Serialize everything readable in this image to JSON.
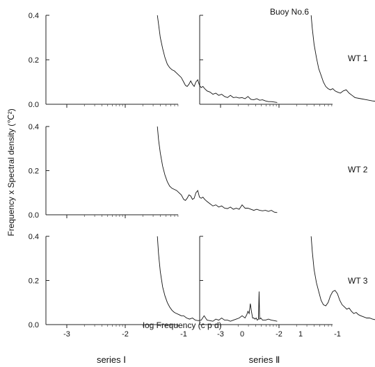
{
  "figure": {
    "buoy_label": "Buoy No.6",
    "ylabel": "Frequency x Spectral density (℃²)",
    "xlabel": "log Frequency (c p d)",
    "column_labels": [
      "series Ⅰ",
      "series Ⅱ"
    ],
    "row_labels": [
      "WT 1",
      "WT 2",
      "WT 3"
    ],
    "y_tick_labels": [
      "0.0",
      "0.2",
      "0.4"
    ],
    "x_tick_labels": [
      "-3",
      "-2",
      "-1",
      "0",
      "1"
    ]
  },
  "chart_data": [
    {
      "type": "line",
      "panel": "WT 1 series Ⅰ",
      "x_range": [
        -3,
        1
      ],
      "ylim": [
        0,
        0.4
      ],
      "series": [
        {
          "x": [
            -1.45,
            -1.43,
            -1.4,
            -1.36,
            -1.32,
            -1.28,
            -1.24,
            -1.2,
            -1.16,
            -1.12,
            -1.08,
            -1.04,
            -1.0,
            -0.97,
            -0.94,
            -0.91,
            -0.88,
            -0.85,
            -0.82,
            -0.79,
            -0.76,
            -0.73,
            -0.7,
            -0.67,
            -0.64,
            -0.6,
            -0.55,
            -0.5,
            -0.45,
            -0.4,
            -0.35,
            -0.3,
            -0.25,
            -0.2,
            -0.15,
            -0.1,
            -0.05,
            0.0,
            0.05,
            0.1,
            0.15,
            0.2,
            0.25,
            0.3,
            0.35,
            0.4,
            0.45,
            0.5,
            0.55,
            0.6
          ],
          "y": [
            0.4,
            0.36,
            0.3,
            0.25,
            0.21,
            0.18,
            0.165,
            0.155,
            0.15,
            0.14,
            0.13,
            0.12,
            0.1,
            0.085,
            0.08,
            0.09,
            0.105,
            0.09,
            0.08,
            0.1,
            0.11,
            0.085,
            0.075,
            0.08,
            0.07,
            0.06,
            0.055,
            0.045,
            0.05,
            0.04,
            0.045,
            0.035,
            0.03,
            0.04,
            0.03,
            0.032,
            0.028,
            0.03,
            0.025,
            0.035,
            0.022,
            0.02,
            0.025,
            0.018,
            0.02,
            0.015,
            0.012,
            0.012,
            0.01,
            0.008
          ]
        }
      ]
    },
    {
      "type": "line",
      "panel": "WT 1 series Ⅱ",
      "x_range": [
        -3,
        1
      ],
      "ylim": [
        0,
        0.4
      ],
      "series": [
        {
          "x": [
            -1.45,
            -1.43,
            -1.4,
            -1.36,
            -1.32,
            -1.28,
            -1.24,
            -1.2,
            -1.16,
            -1.12,
            -1.08,
            -1.04,
            -1.0,
            -0.95,
            -0.9,
            -0.85,
            -0.8,
            -0.75,
            -0.7,
            -0.6,
            -0.5,
            -0.4,
            -0.3,
            -0.2,
            -0.1,
            -0.05,
            0.0,
            0.02,
            0.03,
            0.05,
            0.1,
            0.2,
            0.3,
            0.4,
            0.5,
            0.6
          ],
          "y": [
            0.4,
            0.34,
            0.27,
            0.21,
            0.16,
            0.13,
            0.1,
            0.08,
            0.07,
            0.065,
            0.07,
            0.06,
            0.055,
            0.05,
            0.06,
            0.065,
            0.05,
            0.04,
            0.03,
            0.025,
            0.02,
            0.015,
            0.012,
            0.012,
            0.01,
            0.012,
            0.015,
            0.06,
            0.015,
            0.01,
            0.012,
            0.008,
            0.006,
            0.005,
            0.005,
            0.004
          ]
        }
      ]
    },
    {
      "type": "line",
      "panel": "WT 2 series Ⅰ",
      "x_range": [
        -3,
        1
      ],
      "ylim": [
        0,
        0.4
      ],
      "series": [
        {
          "x": [
            -1.45,
            -1.43,
            -1.4,
            -1.36,
            -1.32,
            -1.28,
            -1.24,
            -1.2,
            -1.16,
            -1.12,
            -1.08,
            -1.04,
            -1.0,
            -0.97,
            -0.94,
            -0.91,
            -0.88,
            -0.85,
            -0.82,
            -0.79,
            -0.76,
            -0.73,
            -0.7,
            -0.67,
            -0.64,
            -0.6,
            -0.55,
            -0.5,
            -0.45,
            -0.4,
            -0.35,
            -0.3,
            -0.25,
            -0.2,
            -0.15,
            -0.1,
            -0.05,
            0.0,
            0.05,
            0.1,
            0.15,
            0.2,
            0.25,
            0.3,
            0.35,
            0.4,
            0.45,
            0.5,
            0.55,
            0.6
          ],
          "y": [
            0.4,
            0.34,
            0.28,
            0.22,
            0.18,
            0.15,
            0.13,
            0.12,
            0.115,
            0.11,
            0.1,
            0.09,
            0.07,
            0.065,
            0.075,
            0.09,
            0.085,
            0.07,
            0.075,
            0.1,
            0.11,
            0.08,
            0.075,
            0.08,
            0.07,
            0.06,
            0.05,
            0.04,
            0.045,
            0.035,
            0.04,
            0.03,
            0.028,
            0.035,
            0.025,
            0.03,
            0.025,
            0.045,
            0.03,
            0.03,
            0.025,
            0.02,
            0.025,
            0.02,
            0.018,
            0.02,
            0.015,
            0.02,
            0.012,
            0.01
          ]
        }
      ]
    },
    {
      "type": "line",
      "panel": "WT 3 series Ⅰ",
      "x_range": [
        -3,
        1
      ],
      "ylim": [
        0,
        0.4
      ],
      "series": [
        {
          "x": [
            -1.45,
            -1.43,
            -1.4,
            -1.36,
            -1.32,
            -1.28,
            -1.24,
            -1.2,
            -1.16,
            -1.12,
            -1.08,
            -1.04,
            -1.0,
            -0.95,
            -0.9,
            -0.85,
            -0.8,
            -0.75,
            -0.7,
            -0.65,
            -0.6,
            -0.55,
            -0.5,
            -0.45,
            -0.4,
            -0.35,
            -0.3,
            -0.25,
            -0.2,
            -0.15,
            -0.1,
            -0.05,
            0.0,
            0.05,
            0.08,
            0.1,
            0.12,
            0.14,
            0.16,
            0.18,
            0.2,
            0.22,
            0.24,
            0.26,
            0.28,
            0.29,
            0.3,
            0.32,
            0.35,
            0.4,
            0.45,
            0.5,
            0.55,
            0.6
          ],
          "y": [
            0.4,
            0.32,
            0.24,
            0.17,
            0.13,
            0.1,
            0.08,
            0.065,
            0.055,
            0.05,
            0.045,
            0.04,
            0.04,
            0.03,
            0.025,
            0.03,
            0.02,
            0.018,
            0.02,
            0.04,
            0.02,
            0.018,
            0.015,
            0.025,
            0.02,
            0.03,
            0.02,
            0.02,
            0.015,
            0.02,
            0.025,
            0.03,
            0.04,
            0.03,
            0.045,
            0.06,
            0.05,
            0.095,
            0.06,
            0.03,
            0.03,
            0.025,
            0.03,
            0.02,
            0.025,
            0.15,
            0.025,
            0.03,
            0.02,
            0.02,
            0.025,
            0.02,
            0.018,
            0.015
          ]
        }
      ]
    },
    {
      "type": "line",
      "panel": "WT 3 series Ⅱ",
      "x_range": [
        -3,
        1
      ],
      "ylim": [
        0,
        0.4
      ],
      "series": [
        {
          "x": [
            -1.45,
            -1.43,
            -1.4,
            -1.36,
            -1.32,
            -1.28,
            -1.24,
            -1.2,
            -1.16,
            -1.12,
            -1.08,
            -1.04,
            -1.0,
            -0.96,
            -0.92,
            -0.88,
            -0.84,
            -0.8,
            -0.76,
            -0.72,
            -0.68,
            -0.64,
            -0.6,
            -0.55,
            -0.5,
            -0.45,
            -0.4,
            -0.35,
            -0.3,
            -0.25,
            -0.2,
            -0.15,
            -0.1,
            -0.05,
            0.0,
            0.02,
            0.04,
            0.06,
            0.1,
            0.15,
            0.2,
            0.25,
            0.3,
            0.35,
            0.4,
            0.45,
            0.5,
            0.55,
            0.6
          ],
          "y": [
            0.4,
            0.33,
            0.25,
            0.19,
            0.15,
            0.11,
            0.09,
            0.085,
            0.1,
            0.13,
            0.15,
            0.155,
            0.14,
            0.11,
            0.09,
            0.08,
            0.07,
            0.075,
            0.06,
            0.05,
            0.055,
            0.045,
            0.04,
            0.035,
            0.03,
            0.03,
            0.025,
            0.022,
            0.02,
            0.02,
            0.018,
            0.018,
            0.016,
            0.02,
            0.02,
            0.05,
            0.03,
            0.025,
            0.035,
            0.025,
            0.02,
            0.02,
            0.018,
            0.018,
            0.016,
            0.015,
            0.015,
            0.012,
            0.01
          ]
        }
      ]
    }
  ]
}
